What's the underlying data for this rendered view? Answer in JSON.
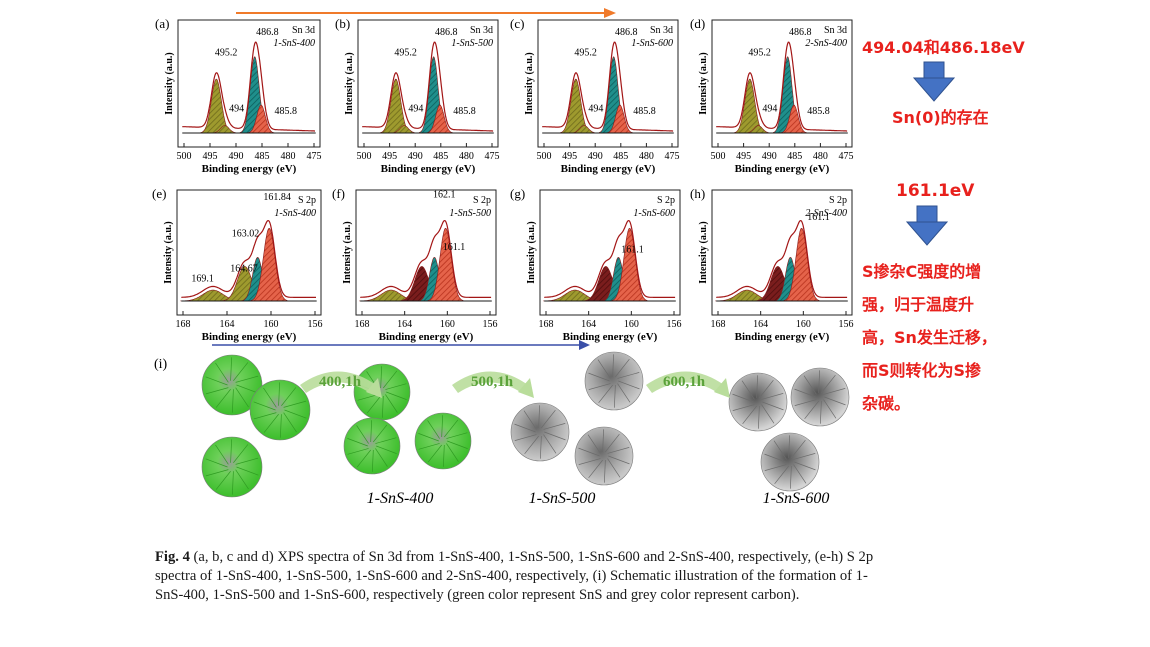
{
  "colors": {
    "annotation_red": "#e8211d",
    "arrow_blue": "#3f6fc4",
    "orange_arrow": "#f07a2a",
    "sns_green": "#4fd640",
    "carbon_grey": "#9a9a9a",
    "step_label_green": "#5aa23a"
  },
  "xps": {
    "ylabel": "Intensity (a.u.)",
    "xlabel": "Binding energy (eV)",
    "sn_ticks": [
      "500",
      "495",
      "490",
      "485",
      "480",
      "475"
    ],
    "s_ticks": [
      "168",
      "164",
      "160",
      "156"
    ],
    "panels": [
      {
        "letter": "(a)",
        "line": "Sn 3d",
        "sample": "1-SnS-400",
        "peaks": [
          "495.2",
          "494",
          "486.8",
          "485.8"
        ]
      },
      {
        "letter": "(b)",
        "line": "Sn 3d",
        "sample": "1-SnS-500",
        "peaks": [
          "495.2",
          "494",
          "486.8",
          "485.8"
        ]
      },
      {
        "letter": "(c)",
        "line": "Sn 3d",
        "sample": "1-SnS-600",
        "peaks": [
          "495.2",
          "494",
          "486.8",
          "485.8"
        ]
      },
      {
        "letter": "(d)",
        "line": "Sn 3d",
        "sample": "2-SnS-400",
        "peaks": [
          "495.2",
          "494",
          "486.8",
          "485.8"
        ]
      },
      {
        "letter": "(e)",
        "line": "S 2p",
        "sample": "1-SnS-400",
        "peaks": [
          "169.1",
          "164.67",
          "163.02",
          "161.84"
        ]
      },
      {
        "letter": "(f)",
        "line": "S 2p",
        "sample": "1-SnS-500",
        "peaks": [
          "162.1",
          "161.1"
        ]
      },
      {
        "letter": "(g)",
        "line": "S 2p",
        "sample": "1-SnS-600",
        "peaks": [
          "161.1"
        ]
      },
      {
        "letter": "(h)",
        "line": "S 2p",
        "sample": "2-SnS-400",
        "peaks": [
          "161.1"
        ]
      }
    ]
  },
  "schematic": {
    "letter": "(i)",
    "steps": [
      "400,1h",
      "500,1h",
      "600,1h"
    ],
    "labels": [
      "1-SnS-400",
      "1-SnS-500",
      "1-SnS-600"
    ]
  },
  "annotations": {
    "a1": "494.04和486.18eV",
    "a2": "Sn(0)的存在",
    "a3": "161.1eV",
    "a4_lines": [
      "S掺杂C强度的增",
      "强，归于温度升",
      "高，Sn发生迁移，",
      "而S则转化为S掺",
      "杂碳。"
    ]
  },
  "caption": {
    "lead": "Fig. 4",
    "text": " (a, b, c and d) XPS spectra of Sn 3d from 1-SnS-400, 1-SnS-500, 1-SnS-600 and 2-SnS-400, respectively, (e-h) S 2p spectra of 1-SnS-400, 1-SnS-500, 1-SnS-600 and 2-SnS-400, respectively, (i) Schematic illustration of the formation of 1-SnS-400, 1-SnS-500 and 1-SnS-600, respectively (green color represent SnS and grey color represent carbon)."
  }
}
